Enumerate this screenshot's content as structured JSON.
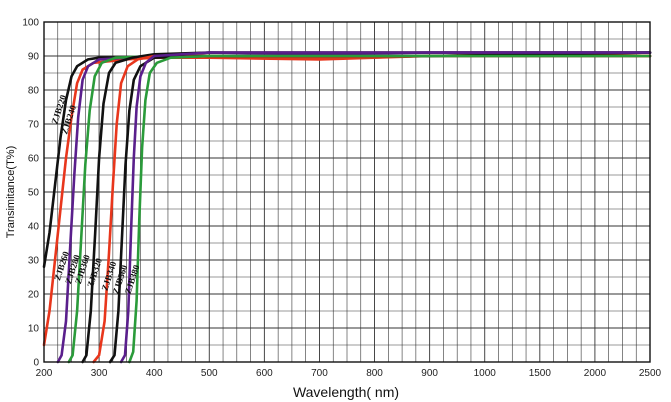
{
  "chart_data": {
    "type": "line",
    "xlabel": "Wavelength( nm)",
    "ylabel": "Transimitance(T%)",
    "ylim": [
      0,
      100
    ],
    "x_ticks": [
      "200",
      "300",
      "400",
      "500",
      "600",
      "700",
      "800",
      "900",
      "1000",
      "1500",
      "2000",
      "2500"
    ],
    "y_ticks": [
      "0",
      "10",
      "20",
      "30",
      "40",
      "50",
      "60",
      "70",
      "80",
      "90",
      "100"
    ],
    "grid": true,
    "legend": "none",
    "series": [
      {
        "name": "ZJB220",
        "color": "#111111",
        "points": [
          [
            200,
            28
          ],
          [
            210,
            38
          ],
          [
            220,
            52
          ],
          [
            230,
            66
          ],
          [
            240,
            77
          ],
          [
            250,
            84
          ],
          [
            260,
            87
          ],
          [
            280,
            89
          ],
          [
            300,
            89.5
          ],
          [
            350,
            89.5
          ],
          [
            400,
            90
          ],
          [
            500,
            90
          ],
          [
            700,
            89.5
          ],
          [
            900,
            90
          ],
          [
            1500,
            90
          ],
          [
            2500,
            90
          ]
        ]
      },
      {
        "name": "ZJB240",
        "color": "#e8361c",
        "points": [
          [
            200,
            5
          ],
          [
            210,
            15
          ],
          [
            220,
            30
          ],
          [
            230,
            45
          ],
          [
            240,
            60
          ],
          [
            250,
            72
          ],
          [
            260,
            82
          ],
          [
            270,
            86
          ],
          [
            290,
            88
          ],
          [
            350,
            89
          ],
          [
            400,
            89.5
          ],
          [
            500,
            89.5
          ],
          [
            700,
            89
          ],
          [
            900,
            90
          ],
          [
            1500,
            90
          ],
          [
            2500,
            90
          ]
        ]
      },
      {
        "name": "ZJB260",
        "color": "#5a1f8c",
        "points": [
          [
            225,
            0
          ],
          [
            232,
            2
          ],
          [
            240,
            12
          ],
          [
            248,
            35
          ],
          [
            255,
            55
          ],
          [
            262,
            72
          ],
          [
            270,
            83
          ],
          [
            280,
            87
          ],
          [
            300,
            89
          ],
          [
            400,
            90
          ],
          [
            500,
            91
          ],
          [
            700,
            90.5
          ],
          [
            900,
            91
          ],
          [
            1500,
            91
          ],
          [
            2500,
            91
          ]
        ]
      },
      {
        "name": "ZJB280",
        "color": "#2a9b3a",
        "points": [
          [
            245,
            0
          ],
          [
            252,
            2
          ],
          [
            260,
            15
          ],
          [
            268,
            38
          ],
          [
            275,
            58
          ],
          [
            283,
            74
          ],
          [
            292,
            84
          ],
          [
            305,
            88
          ],
          [
            330,
            89.5
          ],
          [
            400,
            90
          ],
          [
            500,
            90
          ],
          [
            700,
            89.5
          ],
          [
            900,
            90
          ],
          [
            1500,
            90.5
          ],
          [
            2500,
            91
          ]
        ]
      },
      {
        "name": "ZJB300",
        "color": "#111111",
        "points": [
          [
            270,
            0
          ],
          [
            277,
            2
          ],
          [
            285,
            15
          ],
          [
            293,
            38
          ],
          [
            300,
            60
          ],
          [
            308,
            76
          ],
          [
            318,
            85
          ],
          [
            330,
            88
          ],
          [
            360,
            89.5
          ],
          [
            400,
            90.5
          ],
          [
            500,
            91
          ],
          [
            700,
            91
          ],
          [
            900,
            91
          ],
          [
            1500,
            91
          ],
          [
            2500,
            91
          ]
        ]
      },
      {
        "name": "ZJB320",
        "color": "#e8361c",
        "points": [
          [
            290,
            0
          ],
          [
            300,
            2
          ],
          [
            310,
            12
          ],
          [
            318,
            32
          ],
          [
            325,
            52
          ],
          [
            332,
            70
          ],
          [
            340,
            82
          ],
          [
            352,
            87
          ],
          [
            370,
            89
          ],
          [
            400,
            90
          ],
          [
            500,
            90
          ],
          [
            700,
            89.5
          ],
          [
            900,
            90
          ],
          [
            1500,
            90.5
          ],
          [
            2500,
            90
          ]
        ]
      },
      {
        "name": "ZJB340",
        "color": "#111111",
        "points": [
          [
            320,
            0
          ],
          [
            328,
            2
          ],
          [
            335,
            15
          ],
          [
            342,
            38
          ],
          [
            348,
            58
          ],
          [
            355,
            74
          ],
          [
            363,
            83
          ],
          [
            375,
            87
          ],
          [
            400,
            89.5
          ],
          [
            500,
            90
          ],
          [
            700,
            90
          ],
          [
            900,
            90
          ],
          [
            1500,
            90.5
          ],
          [
            2500,
            91
          ]
        ]
      },
      {
        "name": "ZJB360",
        "color": "#5a1f8c",
        "points": [
          [
            340,
            0
          ],
          [
            347,
            2
          ],
          [
            353,
            15
          ],
          [
            358,
            38
          ],
          [
            363,
            60
          ],
          [
            368,
            75
          ],
          [
            375,
            84
          ],
          [
            385,
            88
          ],
          [
            400,
            90
          ],
          [
            500,
            91
          ],
          [
            700,
            91
          ],
          [
            900,
            91
          ],
          [
            1500,
            91
          ],
          [
            2500,
            91
          ]
        ]
      },
      {
        "name": "ZJB380",
        "color": "#2a9b3a",
        "points": [
          [
            355,
            0
          ],
          [
            362,
            3
          ],
          [
            368,
            18
          ],
          [
            373,
            42
          ],
          [
            378,
            63
          ],
          [
            384,
            77
          ],
          [
            392,
            85
          ],
          [
            405,
            88
          ],
          [
            430,
            89.5
          ],
          [
            500,
            90
          ],
          [
            700,
            90
          ],
          [
            900,
            90
          ],
          [
            1500,
            90
          ],
          [
            2500,
            90
          ]
        ]
      }
    ],
    "curve_labels": [
      {
        "text": "ZJB220",
        "x": 232,
        "y": 74
      },
      {
        "text": "ZJB240",
        "x": 250,
        "y": 71
      },
      {
        "text": "ZJB260",
        "x": 237,
        "y": 28
      },
      {
        "text": "ZJB280",
        "x": 257,
        "y": 27
      },
      {
        "text": "ZJB300",
        "x": 275,
        "y": 27
      },
      {
        "text": "ZJB320",
        "x": 297,
        "y": 26
      },
      {
        "text": "ZJB340",
        "x": 323,
        "y": 25
      },
      {
        "text": "ZJB360",
        "x": 343,
        "y": 24
      },
      {
        "text": "ZJB380",
        "x": 365,
        "y": 24
      }
    ]
  }
}
